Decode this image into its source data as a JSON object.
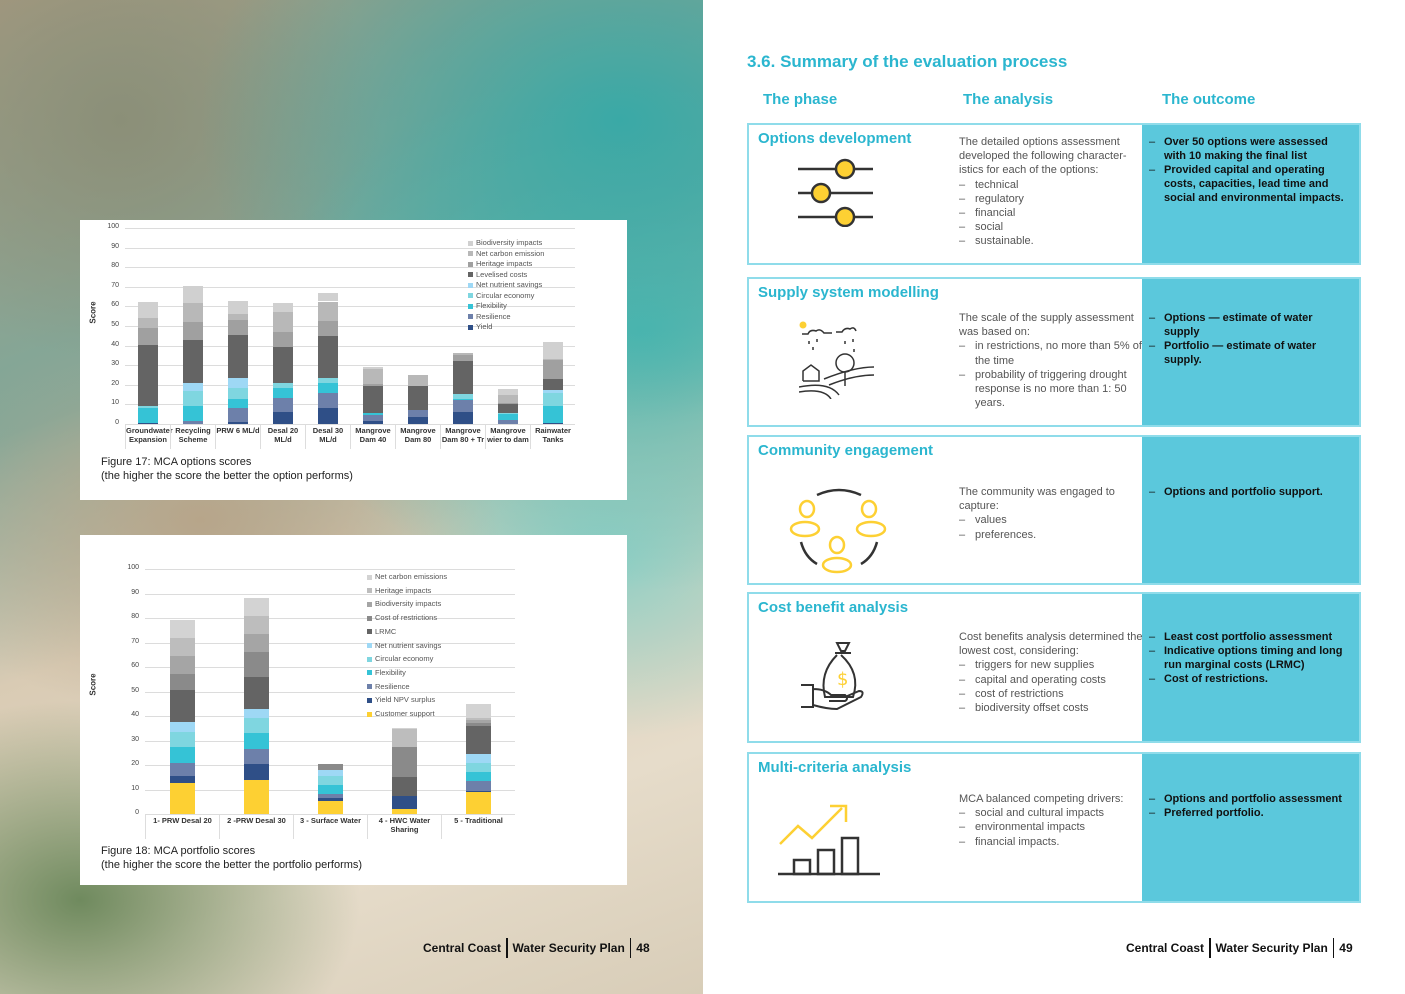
{
  "left_page": {
    "figure17": {
      "caption_line1": "Figure 17:   MCA options scores",
      "caption_line2": "(the higher the score the better the option performs)"
    },
    "figure18": {
      "caption_line1": "Figure 18:   MCA portfolio scores",
      "caption_line2": "(the higher the score the better the portfolio performs)"
    },
    "footer": {
      "org": "Central Coast",
      "doc": "Water Security Plan",
      "page": "48"
    }
  },
  "chart_data": [
    {
      "type": "bar",
      "stacked": true,
      "title": "",
      "xlabel": "",
      "ylabel": "Score",
      "ylim": [
        0,
        100
      ],
      "yticks": [
        0,
        10,
        20,
        30,
        40,
        50,
        60,
        70,
        80,
        90,
        100
      ],
      "grid": true,
      "legend": "top-right",
      "categories": [
        "Groundwater Expansion",
        "Recycling Scheme",
        "PRW 6 ML/d",
        "Desal 20 ML/d",
        "Desal 30 ML/d",
        "Mangrove Dam 40",
        "Mangrove Dam 80",
        "Mangrove Dam 80 + Tr",
        "Mangrove wier to dam",
        "Rainwater Tanks"
      ],
      "series": [
        {
          "name": "Yield",
          "color": "#2f4f87",
          "values": [
            0.5,
            0,
            1,
            6,
            8,
            1.5,
            3.5,
            6,
            0,
            0.5
          ]
        },
        {
          "name": "Resilience",
          "color": "#6d80aa",
          "values": [
            0,
            1.5,
            7,
            7.5,
            8,
            3,
            3.5,
            6,
            2,
            0
          ]
        },
        {
          "name": "Flexibility",
          "color": "#35c3d6",
          "values": [
            7.5,
            7.5,
            5,
            5,
            5,
            1,
            0,
            1,
            3,
            8.5
          ]
        },
        {
          "name": "Circular economy",
          "color": "#7fd6e0",
          "values": [
            1,
            8,
            5.5,
            2.5,
            2.5,
            0,
            0,
            2.5,
            0.5,
            7
          ]
        },
        {
          "name": "Net nutrient savings",
          "color": "#9ed8f5",
          "values": [
            0,
            4,
            5,
            0,
            0,
            0,
            0,
            0,
            0,
            1.5
          ]
        },
        {
          "name": "Levelised costs",
          "color": "#646464",
          "values": [
            31.5,
            22,
            22,
            18.5,
            21.5,
            14,
            12.5,
            16.5,
            4.5,
            5.5
          ]
        },
        {
          "name": "Heritage impacts",
          "color": "#a0a0a0",
          "values": [
            8.5,
            9,
            7.5,
            7.5,
            7.5,
            1,
            0,
            3,
            0.5,
            9.5
          ]
        },
        {
          "name": "Net carbon emission",
          "color": "#b8b8b8",
          "values": [
            5,
            9.5,
            3,
            10,
            10,
            7.5,
            5.5,
            1,
            4.5,
            0.5
          ]
        },
        {
          "name": "Biodiversity impacts",
          "color": "#d0d0d0",
          "values": [
            8,
            9,
            7,
            4.5,
            4.5,
            1,
            0,
            0,
            3,
            9
          ]
        }
      ]
    },
    {
      "type": "bar",
      "stacked": true,
      "title": "",
      "xlabel": "",
      "ylabel": "Score",
      "ylim": [
        0,
        100
      ],
      "yticks": [
        0,
        10,
        20,
        30,
        40,
        50,
        60,
        70,
        80,
        90,
        100
      ],
      "grid": true,
      "legend": "top-right",
      "categories": [
        "1- PRW Desal 20",
        "2 -PRW Desal 30",
        "3 - Surface Water",
        "4 - HWC Water Sharing",
        "5 - Traditional"
      ],
      "series": [
        {
          "name": "Customer support",
          "color": "#fdd033",
          "values": [
            12.5,
            14,
            5.5,
            2,
            9
          ]
        },
        {
          "name": "Yield NPV surplus",
          "color": "#2f4f87",
          "values": [
            3,
            6.5,
            1,
            5.5,
            0.5
          ]
        },
        {
          "name": "Resilience",
          "color": "#6d80aa",
          "values": [
            5.5,
            6,
            1.5,
            0,
            4
          ]
        },
        {
          "name": "Flexibility",
          "color": "#35c3d6",
          "values": [
            6.5,
            6.5,
            4,
            0,
            3.5
          ]
        },
        {
          "name": "Circular economy",
          "color": "#7fd6e0",
          "values": [
            6,
            6,
            3.5,
            0,
            4
          ]
        },
        {
          "name": "Net nutrient savings",
          "color": "#9ed8f5",
          "values": [
            4,
            4,
            2.5,
            0,
            3.5
          ]
        },
        {
          "name": "LRMC",
          "color": "#646464",
          "values": [
            13,
            13,
            0,
            7.5,
            11.5
          ]
        },
        {
          "name": "Cost of restrictions",
          "color": "#8a8a8a",
          "values": [
            6.5,
            10,
            2.5,
            12.5,
            1
          ]
        },
        {
          "name": "Biodiversity impacts",
          "color": "#a5a5a5",
          "values": [
            7.5,
            7.5,
            0,
            0,
            1.5
          ]
        },
        {
          "name": "Heritage impacts",
          "color": "#bdbdbd",
          "values": [
            7.5,
            7.5,
            0,
            7,
            0.5
          ]
        },
        {
          "name": "Net carbon emissions",
          "color": "#d3d3d3",
          "values": [
            7,
            7,
            0,
            0.5,
            6
          ]
        }
      ]
    }
  ],
  "right_page": {
    "title": "3.6. Summary of the evaluation process",
    "columns": {
      "phase": "The phase",
      "analysis": "The analysis",
      "outcome": "The outcome"
    },
    "accent": "#2bb6cf",
    "outcome_bg": "#5bc8dc",
    "rows": [
      {
        "phase": "Options development",
        "icon": "sliders-icon",
        "analysis_intro": "The detailed options assessment developed the following character-istics for each of the options:",
        "analysis_items": [
          "technical",
          "regulatory",
          "financial",
          "social",
          "sustainable."
        ],
        "outcomes": [
          "Over 50 options were assessed with 10 making the final list",
          "Provided capital and operating  costs, capacities, lead time and social and environmental impacts."
        ]
      },
      {
        "phase": "Supply system modelling",
        "icon": "landscape-rain-icon",
        "analysis_intro": "The scale of the supply assessment was based on:",
        "analysis_items": [
          "in restrictions, no more than 5% of the time",
          "probability of triggering drought response is no more than 1: 50 years."
        ],
        "outcomes": [
          "Options — estimate of water supply",
          "Portfolio — estimate of water supply."
        ]
      },
      {
        "phase": "Community engagement",
        "icon": "community-people-icon",
        "analysis_intro": "The community was engaged to capture:",
        "analysis_items": [
          "values",
          "preferences."
        ],
        "outcomes": [
          "Options and portfolio support."
        ]
      },
      {
        "phase": "Cost benefit analysis",
        "icon": "money-bag-hand-icon",
        "analysis_intro": "Cost benefits analysis determined the lowest cost, considering:",
        "analysis_items": [
          "triggers for new supplies",
          "capital and operating costs",
          "cost of restrictions",
          "biodiversity offset costs"
        ],
        "outcomes": [
          "Least cost portfolio assessment",
          "Indicative options timing and long run marginal costs (LRMC)",
          "Cost of restrictions."
        ]
      },
      {
        "phase": "Multi-criteria analysis",
        "icon": "growth-chart-icon",
        "analysis_intro": "MCA balanced competing drivers:",
        "analysis_items": [
          "social and cultural impacts",
          "environmental impacts",
          "financial impacts."
        ],
        "outcomes": [
          "Options and portfolio assessment",
          "Preferred portfolio."
        ]
      }
    ],
    "footer": {
      "org": "Central Coast",
      "doc": "Water Security Plan",
      "page": "49"
    }
  }
}
